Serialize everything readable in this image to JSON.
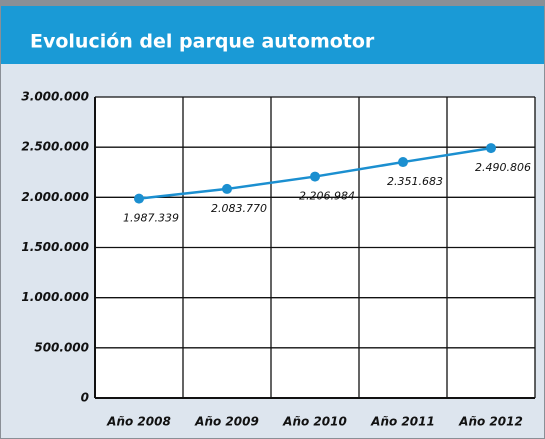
{
  "chart_data": {
    "type": "line",
    "title": "Evolución del parque automotor",
    "categories": [
      "Año 2008",
      "Año 2009",
      "Año 2010",
      "Año 2011",
      "Año 2012"
    ],
    "series": [
      {
        "name": "Parque automotor",
        "color": "#1b8fd0",
        "values": [
          1987339,
          2083770,
          2206984,
          2351683,
          2490806
        ],
        "value_labels": [
          "1.987.339",
          "2.083.770",
          "2.206.984",
          "2.351.683",
          "2.490.806"
        ]
      }
    ],
    "ylim": [
      0,
      3000000
    ],
    "yticks": [
      0,
      {
        "value": 500000,
        "label": "500.000"
      },
      {
        "value": 1000000,
        "label": "1.000.000"
      },
      {
        "value": 1500000,
        "label": "1.500.000"
      },
      {
        "value": 2000000,
        "label": "2.000.000"
      },
      {
        "value": 2500000,
        "label": "2.500.000"
      },
      {
        "value": 3000000,
        "label": "3.000.000"
      }
    ],
    "grid": true
  }
}
